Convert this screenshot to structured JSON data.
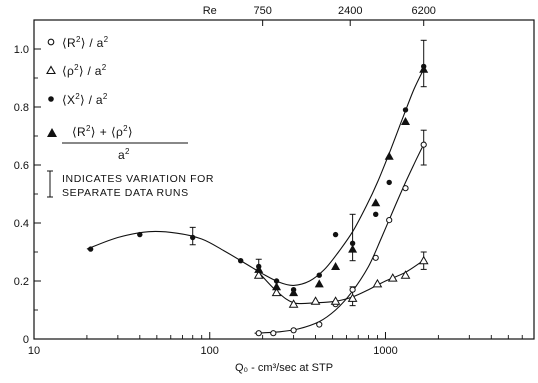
{
  "chart_data": {
    "type": "scatter",
    "x_axis": {
      "label": "Q₀ - cm³/sec at STP",
      "scale": "log",
      "range": [
        10,
        7000
      ],
      "ticks": [
        {
          "value": 10,
          "label": "10"
        },
        {
          "value": 100,
          "label": "100"
        },
        {
          "value": 1000,
          "label": "1000"
        }
      ]
    },
    "top_axis": {
      "title": "Re",
      "ticks": [
        {
          "value": 200,
          "label": "750"
        },
        {
          "value": 630,
          "label": "2400"
        },
        {
          "value": 1650,
          "label": "6200"
        }
      ]
    },
    "y_axis": {
      "label": "",
      "range": [
        0,
        1.1
      ],
      "ticks": [
        {
          "value": 0,
          "label": "0"
        },
        {
          "value": 0.2,
          "label": "0.2"
        },
        {
          "value": 0.4,
          "label": "0.4"
        },
        {
          "value": 0.6,
          "label": "0.6"
        },
        {
          "value": 0.8,
          "label": "0.8"
        },
        {
          "value": 1.0,
          "label": "1.0"
        }
      ]
    },
    "grid": false,
    "legend_position": "top-left",
    "series": [
      {
        "name": "⟨R²⟩ / a²",
        "marker": "open-circle",
        "points": [
          [
            190,
            0.02
          ],
          [
            230,
            0.02
          ],
          [
            300,
            0.03
          ],
          [
            420,
            0.05
          ],
          [
            520,
            0.12
          ],
          [
            650,
            0.17
          ],
          [
            880,
            0.28
          ],
          [
            1050,
            0.41
          ],
          [
            1300,
            0.52
          ],
          [
            1650,
            0.67
          ]
        ],
        "curve": [
          [
            180,
            0.02
          ],
          [
            250,
            0.025
          ],
          [
            320,
            0.035
          ],
          [
            420,
            0.06
          ],
          [
            520,
            0.1
          ],
          [
            640,
            0.16
          ],
          [
            800,
            0.25
          ],
          [
            950,
            0.35
          ],
          [
            1100,
            0.44
          ],
          [
            1300,
            0.54
          ],
          [
            1500,
            0.62
          ],
          [
            1680,
            0.68
          ]
        ]
      },
      {
        "name": "⟨ρ²⟩ / a²",
        "marker": "open-triangle",
        "points": [
          [
            190,
            0.22
          ],
          [
            240,
            0.16
          ],
          [
            300,
            0.12
          ],
          [
            400,
            0.13
          ],
          [
            520,
            0.13
          ],
          [
            650,
            0.14
          ],
          [
            900,
            0.19
          ],
          [
            1100,
            0.21
          ],
          [
            1300,
            0.22
          ],
          [
            1650,
            0.27
          ]
        ],
        "curve": [
          [
            190,
            0.23
          ],
          [
            240,
            0.165
          ],
          [
            300,
            0.125
          ],
          [
            400,
            0.125
          ],
          [
            520,
            0.13
          ],
          [
            650,
            0.145
          ],
          [
            800,
            0.17
          ],
          [
            1000,
            0.2
          ],
          [
            1300,
            0.23
          ],
          [
            1680,
            0.275
          ]
        ]
      },
      {
        "name": "⟨x²⟩ / a²",
        "marker": "filled-circle",
        "points": [
          [
            21,
            0.31
          ],
          [
            40,
            0.36
          ],
          [
            80,
            0.35
          ],
          [
            150,
            0.27
          ],
          [
            190,
            0.25
          ],
          [
            240,
            0.2
          ],
          [
            300,
            0.17
          ],
          [
            420,
            0.22
          ],
          [
            520,
            0.36
          ],
          [
            650,
            0.33
          ],
          [
            880,
            0.43
          ],
          [
            1050,
            0.54
          ],
          [
            1300,
            0.79
          ],
          [
            1650,
            0.94
          ]
        ]
      },
      {
        "name": "[⟨R²⟩ + ⟨ρ²⟩] / a²",
        "marker": "filled-triangle",
        "points": [
          [
            190,
            0.24
          ],
          [
            240,
            0.18
          ],
          [
            300,
            0.16
          ],
          [
            420,
            0.19
          ],
          [
            520,
            0.25
          ],
          [
            650,
            0.31
          ],
          [
            880,
            0.47
          ],
          [
            1050,
            0.63
          ],
          [
            1300,
            0.75
          ],
          [
            1650,
            0.93
          ]
        ]
      }
    ],
    "fit_curve_upper": [
      [
        20,
        0.31
      ],
      [
        30,
        0.35
      ],
      [
        45,
        0.37
      ],
      [
        65,
        0.365
      ],
      [
        90,
        0.345
      ],
      [
        120,
        0.305
      ],
      [
        160,
        0.26
      ],
      [
        200,
        0.225
      ],
      [
        250,
        0.195
      ],
      [
        300,
        0.185
      ],
      [
        370,
        0.2
      ],
      [
        450,
        0.24
      ],
      [
        540,
        0.3
      ],
      [
        650,
        0.37
      ],
      [
        780,
        0.46
      ],
      [
        900,
        0.54
      ],
      [
        1050,
        0.64
      ],
      [
        1250,
        0.76
      ],
      [
        1450,
        0.86
      ],
      [
        1680,
        0.94
      ]
    ],
    "error_bars": [
      {
        "x": 80,
        "y": 0.35,
        "low": 0.325,
        "high": 0.385
      },
      {
        "x": 190,
        "y": 0.245,
        "low": 0.215,
        "high": 0.275
      },
      {
        "x": 650,
        "y": 0.35,
        "low": 0.27,
        "high": 0.43
      },
      {
        "x": 650,
        "y": 0.145,
        "low": 0.115,
        "high": 0.18
      },
      {
        "x": 1650,
        "y": 0.67,
        "low": 0.6,
        "high": 0.72
      },
      {
        "x": 1650,
        "y": 0.27,
        "low": 0.24,
        "high": 0.3
      },
      {
        "x": 1650,
        "y": 0.93,
        "low": 0.87,
        "high": 1.03
      }
    ],
    "legend": {
      "r2": {
        "pre": "⟨R",
        "sup": "2",
        "post": "⟩ / a",
        "sup2": "2"
      },
      "rho2": {
        "pre": "⟨ρ",
        "sup": "2",
        "post": "⟩ / a",
        "sup2": "2"
      },
      "x2": {
        "pre": "⟨X",
        "sup": "2",
        "post": "⟩ / a",
        "sup2": "2"
      },
      "sum_numerator": {
        "a_pre": "⟨R",
        "a_sup": "2",
        "a_post": "⟩",
        "plus": "+",
        "b_pre": "⟨ρ",
        "b_sup": "2",
        "b_post": "⟩"
      },
      "sum_denominator": {
        "base": "a",
        "sup": "2"
      },
      "variation_note_line1": "INDICATES VARIATION FOR",
      "variation_note_line2": "SEPARATE DATA RUNS"
    }
  }
}
